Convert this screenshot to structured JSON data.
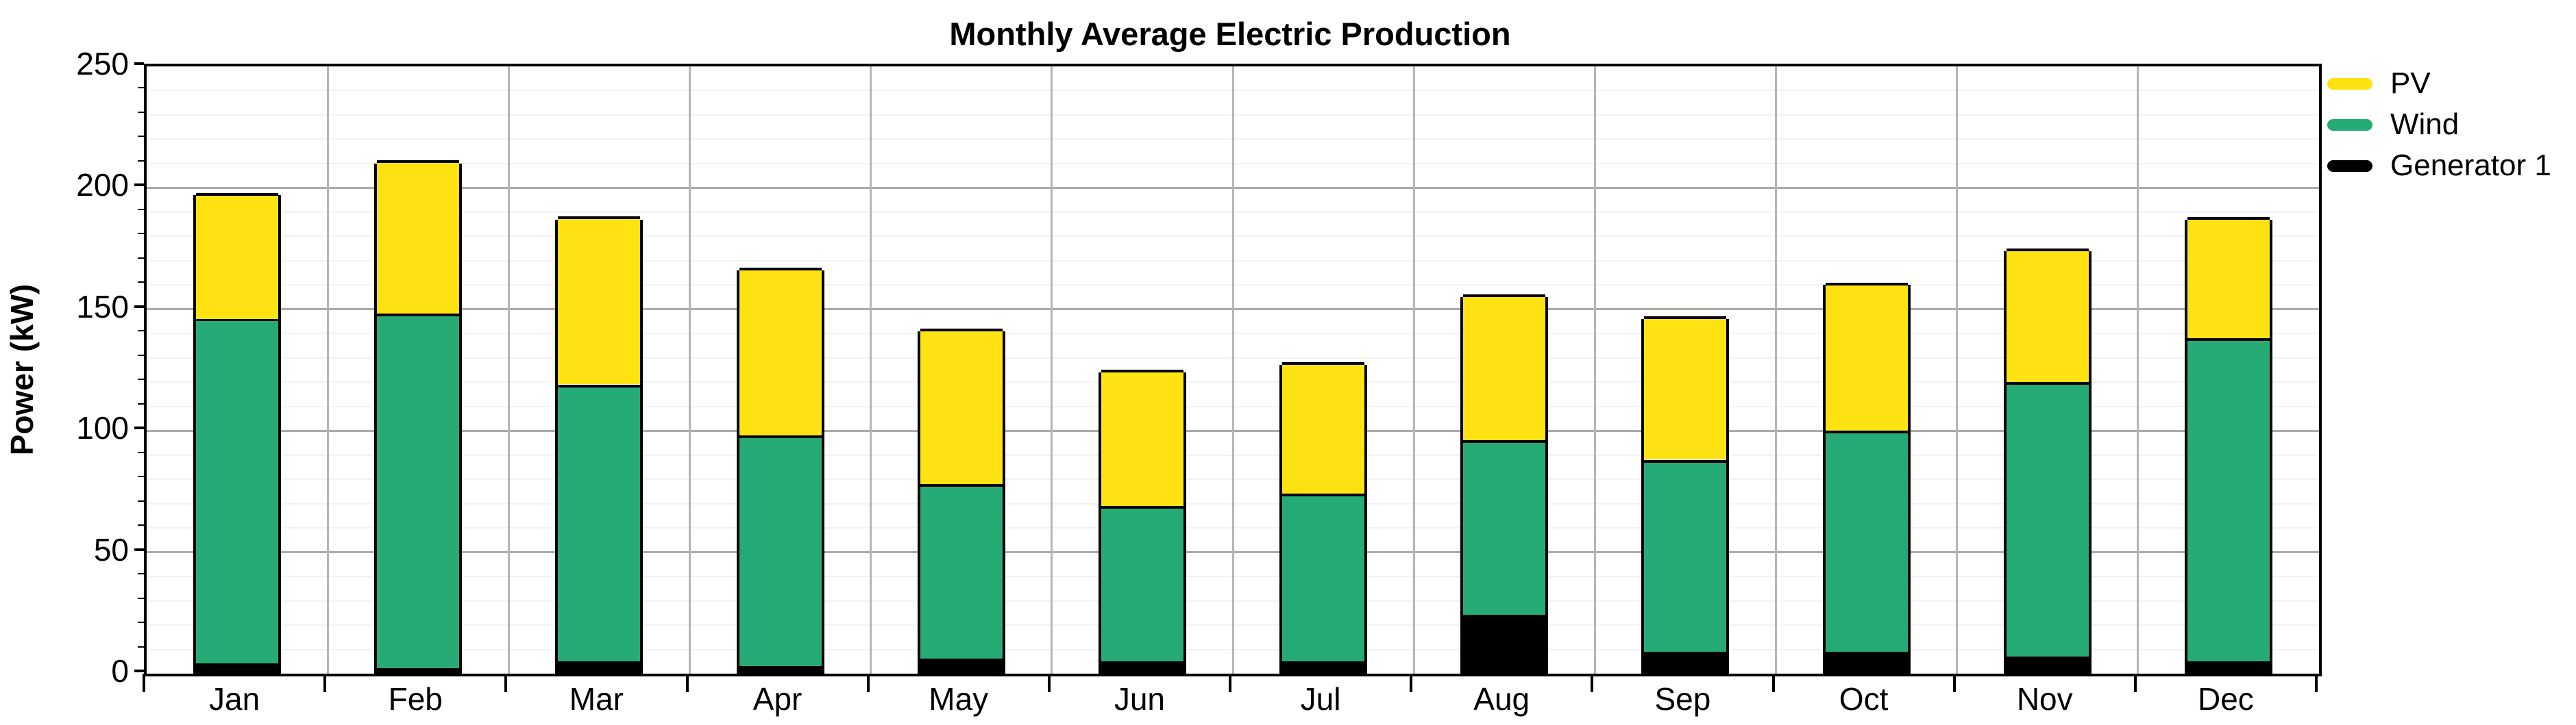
{
  "title": "Monthly Average Electric Production",
  "y_axis": {
    "label": "Power (kW)",
    "tick_labels": [
      "0",
      "50",
      "100",
      "150",
      "200",
      "250"
    ]
  },
  "x_axis": {
    "tick_labels": [
      "Jan",
      "Feb",
      "Mar",
      "Apr",
      "May",
      "Jun",
      "Jul",
      "Aug",
      "Sep",
      "Oct",
      "Nov",
      "Dec"
    ]
  },
  "legend": {
    "items": [
      {
        "label": "PV",
        "color": "#FFE211"
      },
      {
        "label": "Wind",
        "color": "#27AB76"
      },
      {
        "label": "Generator 1",
        "color": "#000000"
      }
    ]
  },
  "chart_data": {
    "type": "bar",
    "stacked": true,
    "title": "Monthly Average Electric Production",
    "xlabel": "",
    "ylabel": "Power (kW)",
    "categories": [
      "Jan",
      "Feb",
      "Mar",
      "Apr",
      "May",
      "Jun",
      "Jul",
      "Aug",
      "Sep",
      "Oct",
      "Nov",
      "Dec"
    ],
    "series": [
      {
        "name": "Generator 1",
        "color": "#000000",
        "stack_position": "bottom",
        "values": [
          3,
          1,
          4,
          2,
          5,
          4,
          4,
          23,
          8,
          8,
          6,
          4
        ]
      },
      {
        "name": "Wind",
        "color": "#27AB76",
        "stack_position": "middle",
        "values": [
          142,
          146,
          114,
          95,
          72,
          64,
          69,
          72,
          79,
          91,
          113,
          133
        ]
      },
      {
        "name": "PV",
        "color": "#FFE211",
        "stack_position": "top",
        "values": [
          52,
          63,
          69,
          69,
          64,
          56,
          54,
          60,
          59,
          61,
          55,
          50
        ]
      }
    ],
    "stack_totals": [
      197,
      210,
      187,
      166,
      141,
      124,
      127,
      155,
      146,
      160,
      174,
      187
    ],
    "ylim": [
      0,
      250
    ],
    "y_major_tick_step": 50,
    "y_minor_tick_step": 10,
    "grid": true,
    "legend_position": "top-right"
  }
}
